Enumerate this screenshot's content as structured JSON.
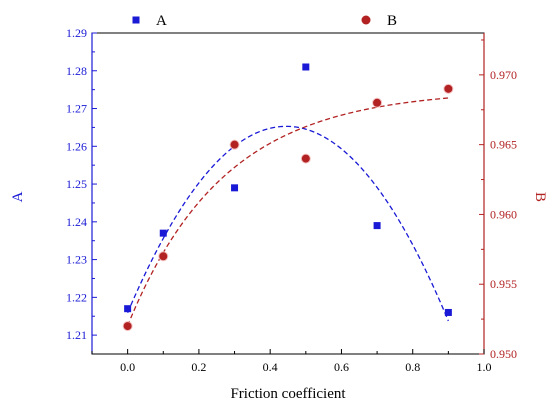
{
  "chart_data": {
    "type": "scatter",
    "xlabel": "Friction coefficient",
    "ylabel_left": "A",
    "ylabel_right": "B",
    "x_ticks": [
      "0.0",
      "0.2",
      "0.4",
      "0.6",
      "0.8",
      "1.0"
    ],
    "xlim": [
      -0.1,
      1.0
    ],
    "left_axis": {
      "ylim": [
        1.205,
        1.29
      ],
      "ticks": [
        "1.21",
        "1.22",
        "1.23",
        "1.24",
        "1.25",
        "1.26",
        "1.27",
        "1.28",
        "1.29"
      ],
      "color": "#1a1ad6"
    },
    "right_axis": {
      "ylim": [
        0.95,
        0.973
      ],
      "ticks": [
        "0.950",
        "0.955",
        "0.960",
        "0.965",
        "0.970"
      ],
      "color": "#b22222"
    },
    "series": [
      {
        "name": "A",
        "axis": "left",
        "marker": "square",
        "color": "#1a1ad6",
        "x": [
          0.0,
          0.1,
          0.3,
          0.5,
          0.7,
          0.9
        ],
        "y": [
          1.217,
          1.237,
          1.249,
          1.281,
          1.239,
          1.216
        ],
        "fit": "quadratic"
      },
      {
        "name": "B",
        "axis": "right",
        "marker": "circle",
        "color": "#b22222",
        "x": [
          0.0,
          0.1,
          0.3,
          0.5,
          0.7,
          0.9
        ],
        "y": [
          0.952,
          0.957,
          0.965,
          0.964,
          0.968,
          0.969
        ],
        "fit": "saturating"
      }
    ],
    "legend_position": "top"
  }
}
